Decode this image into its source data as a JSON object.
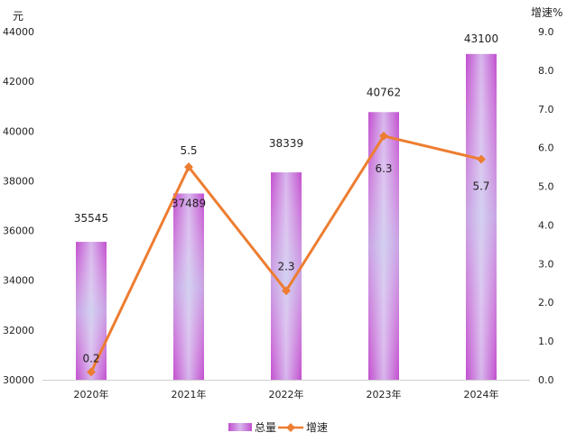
{
  "chart_data": {
    "type": "bar+line",
    "categories": [
      "2020年",
      "2021年",
      "2022年",
      "2023年",
      "2024年"
    ],
    "series": [
      {
        "name": "总量",
        "type": "bar",
        "axis": "left",
        "values": [
          35545,
          37489,
          38339,
          40762,
          43100
        ],
        "labels": [
          "35545",
          "37489",
          "38339",
          "40762",
          "43100"
        ],
        "color": "#c957d6"
      },
      {
        "name": "增速",
        "type": "line",
        "axis": "right",
        "values": [
          0.2,
          5.5,
          2.3,
          6.3,
          5.7
        ],
        "labels": [
          "0.2",
          "5.5",
          "2.3",
          "6.3",
          "5.7"
        ],
        "color": "#ed7d31"
      }
    ],
    "y_left": {
      "unit": "元",
      "range": [
        30000,
        44000
      ],
      "ticks": [
        "30000",
        "32000",
        "34000",
        "36000",
        "38000",
        "40000",
        "42000",
        "44000"
      ]
    },
    "y_right": {
      "unit": "增速%",
      "range": [
        0,
        9
      ],
      "ticks": [
        "0.0",
        "1.0",
        "2.0",
        "3.0",
        "4.0",
        "5.0",
        "6.0",
        "7.0",
        "8.0",
        "9.0"
      ]
    },
    "grid": false,
    "legend_position": "bottom"
  }
}
